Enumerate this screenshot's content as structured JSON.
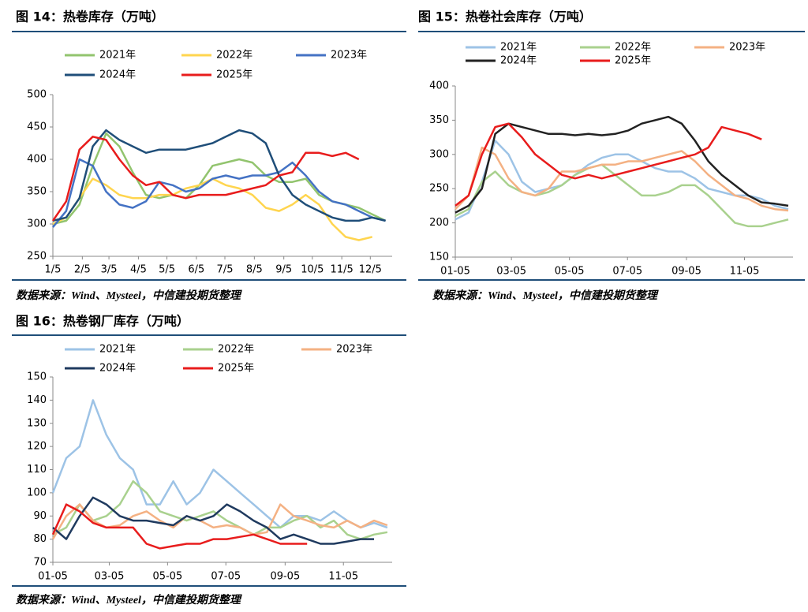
{
  "chart_data": [
    {
      "type": "line",
      "title": "图 14：热卷库存（万吨）",
      "source": "数据来源：Wind、Mysteel，中信建投期货整理",
      "x": [
        5,
        19,
        33,
        47,
        61,
        75,
        89,
        103,
        117,
        131,
        145,
        159,
        173,
        187,
        201,
        215,
        229,
        243,
        257,
        271,
        285,
        299,
        313,
        327,
        341,
        355
      ],
      "xlim": [
        5,
        362
      ],
      "xticks": [
        {
          "value": 5,
          "label": "1/5"
        },
        {
          "value": 36,
          "label": "2/5"
        },
        {
          "value": 64,
          "label": "3/5"
        },
        {
          "value": 95,
          "label": "4/5"
        },
        {
          "value": 125,
          "label": "5/5"
        },
        {
          "value": 156,
          "label": "6/5"
        },
        {
          "value": 186,
          "label": "7/5"
        },
        {
          "value": 217,
          "label": "8/5"
        },
        {
          "value": 248,
          "label": "9/5"
        },
        {
          "value": 278,
          "label": "10/5"
        },
        {
          "value": 309,
          "label": "11/5"
        },
        {
          "value": 339,
          "label": "12/5"
        }
      ],
      "ylim": [
        250,
        500
      ],
      "yticks": [
        250,
        300,
        350,
        400,
        450,
        500
      ],
      "series": [
        {
          "name": "2021年",
          "color": "#92c46e",
          "values": [
            300,
            305,
            330,
            390,
            440,
            420,
            380,
            345,
            340,
            345,
            340,
            360,
            390,
            395,
            400,
            395,
            375,
            365,
            365,
            370,
            345,
            335,
            330,
            325,
            315,
            305
          ]
        },
        {
          "name": "2022年",
          "color": "#ffd54f",
          "values": [
            300,
            310,
            340,
            370,
            360,
            345,
            340,
            340,
            345,
            345,
            355,
            360,
            370,
            360,
            355,
            345,
            325,
            320,
            330,
            345,
            330,
            300,
            280,
            275,
            280,
            null
          ]
        },
        {
          "name": "2023年",
          "color": "#4472c4",
          "values": [
            295,
            320,
            400,
            390,
            350,
            330,
            325,
            335,
            365,
            360,
            350,
            355,
            370,
            375,
            370,
            375,
            375,
            380,
            395,
            375,
            350,
            335,
            330,
            320,
            310,
            305
          ]
        },
        {
          "name": "2024年",
          "color": "#1f4e79",
          "values": [
            305,
            310,
            340,
            420,
            445,
            430,
            420,
            410,
            415,
            415,
            415,
            420,
            425,
            435,
            445,
            440,
            425,
            375,
            345,
            330,
            320,
            310,
            305,
            305,
            310,
            305
          ]
        },
        {
          "name": "2025年",
          "color": "#e81c1c",
          "values": [
            305,
            335,
            415,
            435,
            430,
            400,
            375,
            360,
            365,
            345,
            340,
            345,
            345,
            345,
            350,
            355,
            360,
            375,
            380,
            410,
            410,
            405,
            410,
            400,
            null,
            null
          ]
        }
      ]
    },
    {
      "type": "line",
      "title": "图 15：热卷社会库存（万吨）",
      "source": "数据来源：Wind、Mysteel，中信建投期货整理",
      "x": [
        5,
        19,
        33,
        47,
        61,
        75,
        89,
        103,
        117,
        131,
        145,
        159,
        173,
        187,
        201,
        215,
        229,
        243,
        257,
        271,
        285,
        299,
        313,
        327,
        341,
        355
      ],
      "xlim": [
        5,
        360
      ],
      "xticks": [
        {
          "value": 5,
          "label": "01-05"
        },
        {
          "value": 64,
          "label": "03-05"
        },
        {
          "value": 125,
          "label": "05-05"
        },
        {
          "value": 186,
          "label": "07-05"
        },
        {
          "value": 248,
          "label": "09-05"
        },
        {
          "value": 309,
          "label": "11-05"
        }
      ],
      "ylim": [
        150,
        400
      ],
      "yticks": [
        150,
        200,
        250,
        300,
        350,
        400
      ],
      "series": [
        {
          "name": "2021年",
          "color": "#9dc3e6",
          "values": [
            205,
            215,
            260,
            320,
            300,
            260,
            245,
            250,
            255,
            270,
            285,
            295,
            300,
            300,
            290,
            280,
            275,
            275,
            265,
            250,
            245,
            240,
            240,
            235,
            225,
            220
          ]
        },
        {
          "name": "2022年",
          "color": "#a9d18e",
          "values": [
            210,
            220,
            260,
            275,
            255,
            245,
            240,
            245,
            255,
            270,
            280,
            285,
            270,
            255,
            240,
            240,
            245,
            255,
            255,
            240,
            220,
            200,
            195,
            195,
            200,
            205
          ]
        },
        {
          "name": "2023年",
          "color": "#f4b183",
          "values": [
            220,
            240,
            310,
            300,
            265,
            245,
            240,
            250,
            275,
            275,
            280,
            285,
            285,
            290,
            290,
            295,
            300,
            305,
            290,
            270,
            255,
            240,
            235,
            225,
            220,
            218
          ]
        },
        {
          "name": "2024年",
          "color": "#222222",
          "values": [
            215,
            225,
            250,
            330,
            345,
            340,
            335,
            330,
            330,
            328,
            330,
            328,
            330,
            335,
            345,
            350,
            355,
            345,
            320,
            290,
            270,
            255,
            240,
            230,
            228,
            225
          ]
        },
        {
          "name": "2025年",
          "color": "#e81c1c",
          "values": [
            225,
            240,
            300,
            340,
            345,
            325,
            300,
            285,
            270,
            265,
            270,
            265,
            270,
            275,
            280,
            285,
            290,
            295,
            300,
            310,
            340,
            335,
            330,
            322,
            null,
            null
          ]
        }
      ]
    },
    {
      "type": "line",
      "title": "图 16：热卷钢厂库存（万吨）",
      "source": "数据来源：Wind、Mysteel，中信建投期货整理",
      "x": [
        5,
        19,
        33,
        47,
        61,
        75,
        89,
        103,
        117,
        131,
        145,
        159,
        173,
        187,
        201,
        215,
        229,
        243,
        257,
        271,
        285,
        299,
        313,
        327,
        341,
        355
      ],
      "xlim": [
        5,
        360
      ],
      "xticks": [
        {
          "value": 5,
          "label": "01-05"
        },
        {
          "value": 64,
          "label": "03-05"
        },
        {
          "value": 125,
          "label": "05-05"
        },
        {
          "value": 186,
          "label": "07-05"
        },
        {
          "value": 248,
          "label": "09-05"
        },
        {
          "value": 309,
          "label": "11-05"
        }
      ],
      "ylim": [
        70,
        150
      ],
      "yticks": [
        70,
        80,
        90,
        100,
        110,
        120,
        130,
        140,
        150
      ],
      "series": [
        {
          "name": "2021年",
          "color": "#9dc3e6",
          "values": [
            100,
            115,
            120,
            140,
            125,
            115,
            110,
            95,
            95,
            105,
            95,
            100,
            110,
            105,
            100,
            95,
            90,
            85,
            90,
            90,
            88,
            92,
            88,
            85,
            87,
            85
          ]
        },
        {
          "name": "2022年",
          "color": "#a9d18e",
          "values": [
            82,
            85,
            95,
            88,
            90,
            95,
            105,
            100,
            92,
            90,
            88,
            90,
            92,
            88,
            85,
            82,
            85,
            85,
            88,
            90,
            85,
            88,
            82,
            80,
            82,
            83
          ]
        },
        {
          "name": "2023年",
          "color": "#f4b183",
          "values": [
            80,
            90,
            95,
            88,
            85,
            86,
            90,
            92,
            88,
            85,
            90,
            88,
            85,
            86,
            85,
            82,
            83,
            95,
            90,
            88,
            86,
            85,
            88,
            85,
            88,
            86
          ]
        },
        {
          "name": "2024年",
          "color": "#1f3a5f",
          "values": [
            85,
            80,
            90,
            98,
            95,
            90,
            88,
            88,
            87,
            86,
            90,
            88,
            90,
            95,
            92,
            88,
            85,
            80,
            82,
            80,
            78,
            78,
            79,
            80,
            80,
            null
          ]
        },
        {
          "name": "2025年",
          "color": "#e81c1c",
          "values": [
            82,
            95,
            92,
            87,
            85,
            85,
            85,
            78,
            76,
            77,
            78,
            78,
            80,
            80,
            81,
            82,
            80,
            78,
            78,
            78,
            null,
            null,
            null,
            null,
            null,
            null
          ]
        }
      ]
    }
  ]
}
